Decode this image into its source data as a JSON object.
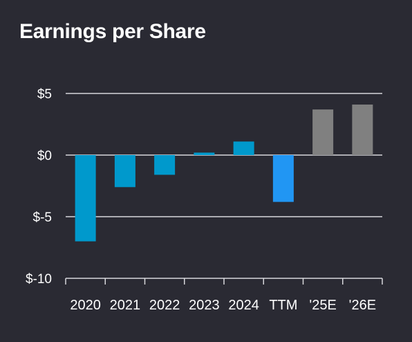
{
  "colors": {
    "background": "#2a2a33",
    "text": "#ffffff",
    "grid": "#d8d8dc",
    "actual": "#0099cc",
    "ttm": "#2196f3",
    "estimate": "#808080"
  },
  "chart_data": {
    "type": "bar",
    "title": "Earnings per Share",
    "xlabel": "",
    "ylabel": "",
    "ylim": [
      -10,
      5
    ],
    "grid": true,
    "legend": "none",
    "categories": [
      "2020",
      "2021",
      "2022",
      "2023",
      "2024",
      "TTM",
      "'25E",
      "'26E"
    ],
    "values": [
      -7.0,
      -2.6,
      -1.6,
      0.2,
      1.1,
      -3.8,
      3.7,
      4.1
    ],
    "bar_kinds": [
      "actual",
      "actual",
      "actual",
      "actual",
      "actual",
      "ttm",
      "estimate",
      "estimate"
    ],
    "yticks": [
      5,
      0,
      -5,
      -10
    ],
    "ytick_labels": [
      "$5",
      "$0",
      "$-5",
      "$-10"
    ]
  }
}
